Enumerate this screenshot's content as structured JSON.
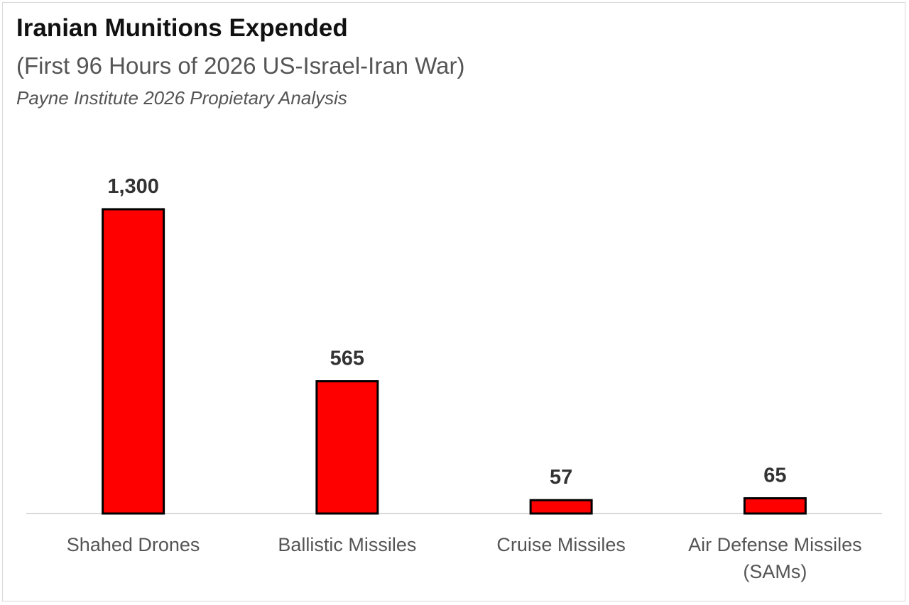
{
  "chart_data": {
    "type": "bar",
    "title": "Iranian Munitions Expended",
    "subtitle": "(First 96 Hours of 2026 US-Israel-Iran War)",
    "source": "Payne Institute 2026 Propietary Analysis",
    "categories": [
      [
        "Shahed Drones"
      ],
      [
        "Ballistic Missiles"
      ],
      [
        "Cruise Missiles"
      ],
      [
        "Air Defense Missiles",
        "(SAMs)"
      ]
    ],
    "values": [
      1300,
      565,
      57,
      65
    ],
    "data_labels": [
      "1,300",
      "565",
      "57",
      "65"
    ],
    "xlabel": "",
    "ylabel": "",
    "ylim": [
      0,
      1300
    ],
    "grid": false,
    "legend": "none"
  },
  "colors": {
    "bar_fill": "#ff0000",
    "bar_outline": "#000000",
    "label_text": "#333333"
  }
}
